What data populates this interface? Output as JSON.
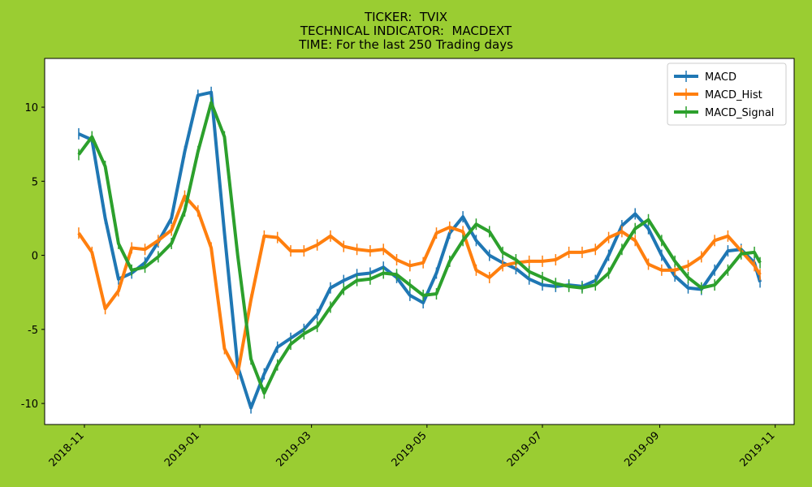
{
  "chart_data": {
    "type": "line",
    "title": [
      "TICKER:  TVIX",
      "TECHNICAL INDICATOR:  MACDEXT",
      "TIME: For the last 250 Trading days"
    ],
    "x": [
      "2018-10-29",
      "2018-11-05",
      "2018-11-12",
      "2018-11-19",
      "2018-11-26",
      "2018-12-03",
      "2018-12-10",
      "2018-12-17",
      "2018-12-24",
      "2018-12-31",
      "2019-01-07",
      "2019-01-14",
      "2019-01-21",
      "2019-01-28",
      "2019-02-04",
      "2019-02-11",
      "2019-02-18",
      "2019-02-25",
      "2019-03-04",
      "2019-03-11",
      "2019-03-18",
      "2019-03-25",
      "2019-04-01",
      "2019-04-08",
      "2019-04-15",
      "2019-04-22",
      "2019-04-29",
      "2019-05-06",
      "2019-05-13",
      "2019-05-20",
      "2019-05-27",
      "2019-06-03",
      "2019-06-10",
      "2019-06-17",
      "2019-06-24",
      "2019-07-01",
      "2019-07-08",
      "2019-07-15",
      "2019-07-22",
      "2019-07-29",
      "2019-08-05",
      "2019-08-12",
      "2019-08-19",
      "2019-08-26",
      "2019-09-02",
      "2019-09-09",
      "2019-09-16",
      "2019-09-23",
      "2019-09-30",
      "2019-10-07",
      "2019-10-14",
      "2019-10-21",
      "2019-10-24"
    ],
    "series": [
      {
        "name": "MACD",
        "color": "#1f77b4",
        "values": [
          8.2,
          7.8,
          2.5,
          -1.6,
          -1.2,
          -0.5,
          0.9,
          2.5,
          7.0,
          10.8,
          11.0,
          1.5,
          -7.5,
          -10.3,
          -8.0,
          -6.2,
          -5.6,
          -5.0,
          -4.0,
          -2.2,
          -1.7,
          -1.3,
          -1.2,
          -0.8,
          -1.5,
          -2.7,
          -3.2,
          -1.2,
          1.5,
          2.6,
          1.0,
          0.0,
          -0.5,
          -0.9,
          -1.6,
          -2.0,
          -2.1,
          -2.0,
          -2.1,
          -1.7,
          0.0,
          2.0,
          2.8,
          1.8,
          0.0,
          -1.4,
          -2.2,
          -2.3,
          -1.0,
          0.3,
          0.4,
          -0.5,
          -1.8
        ]
      },
      {
        "name": "MACD_Hist",
        "color": "#ff7f0e",
        "values": [
          1.5,
          0.2,
          -3.6,
          -2.4,
          0.5,
          0.4,
          1.0,
          1.7,
          4.0,
          3.0,
          0.5,
          -6.3,
          -8.0,
          -3.0,
          1.3,
          1.2,
          0.3,
          0.3,
          0.7,
          1.3,
          0.6,
          0.4,
          0.3,
          0.4,
          -0.3,
          -0.7,
          -0.5,
          1.5,
          1.9,
          1.6,
          -1.0,
          -1.5,
          -0.7,
          -0.5,
          -0.4,
          -0.4,
          -0.3,
          0.2,
          0.2,
          0.4,
          1.2,
          1.6,
          1.0,
          -0.6,
          -1.0,
          -1.0,
          -0.7,
          -0.1,
          1.0,
          1.3,
          0.3,
          -0.7,
          -1.3
        ]
      },
      {
        "name": "MACD_Signal",
        "color": "#2ca02c",
        "values": [
          6.8,
          8.0,
          6.0,
          0.8,
          -1.0,
          -0.8,
          -0.1,
          0.8,
          3.0,
          7.0,
          10.3,
          8.0,
          0.0,
          -7.0,
          -9.3,
          -7.4,
          -6.0,
          -5.3,
          -4.8,
          -3.5,
          -2.3,
          -1.7,
          -1.6,
          -1.2,
          -1.3,
          -2.0,
          -2.7,
          -2.6,
          -0.4,
          1.0,
          2.1,
          1.6,
          0.2,
          -0.3,
          -1.1,
          -1.5,
          -1.9,
          -2.1,
          -2.2,
          -2.0,
          -1.2,
          0.4,
          1.8,
          2.4,
          1.0,
          -0.4,
          -1.5,
          -2.2,
          -2.0,
          -1.0,
          0.1,
          0.2,
          -0.5
        ]
      }
    ],
    "xlim": [
      "2018-10-11",
      "2019-11-11"
    ],
    "xticks": [
      "2018-11",
      "2019-01",
      "2019-03",
      "2019-05",
      "2019-07",
      "2019-09",
      "2019-11"
    ],
    "ylim": [
      -11.42,
      13.29
    ],
    "yticks": [
      -10,
      -5,
      0,
      5,
      10
    ],
    "grid": false,
    "legend": "upper right"
  }
}
